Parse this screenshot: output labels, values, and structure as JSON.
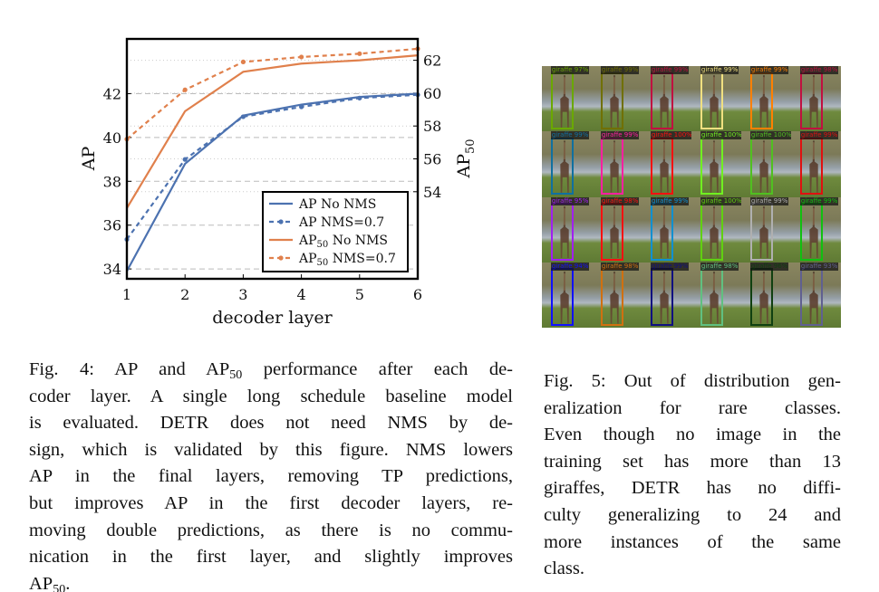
{
  "chart_data": {
    "type": "line",
    "xlabel": "decoder layer",
    "ylabel": "AP",
    "ylabel_right": "AP",
    "ylabel_right_sub": "50",
    "x": [
      1,
      2,
      3,
      4,
      5,
      6
    ],
    "xticks": [
      "1",
      "2",
      "3",
      "4",
      "5",
      "6"
    ],
    "xlim": [
      1,
      6
    ],
    "ylim": [
      33.55,
      44.5
    ],
    "yticks": [
      "34",
      "36",
      "38",
      "40",
      "42"
    ],
    "ylim_right": [
      48.7,
      63.3
    ],
    "yticks_right": [
      "54",
      "56",
      "58",
      "60",
      "62"
    ],
    "grid": true,
    "legend_placement": "bottom-right",
    "series": [
      {
        "name": "AP No NMS",
        "axis": "left",
        "style": "solid",
        "markers": false,
        "color": "#4c72b0",
        "values": [
          33.9,
          38.8,
          41.0,
          41.5,
          41.85,
          42.0
        ]
      },
      {
        "name": "AP NMS=0.7",
        "axis": "left",
        "style": "dashed",
        "markers": true,
        "color": "#4c72b0",
        "values": [
          35.35,
          39.0,
          40.95,
          41.4,
          41.8,
          41.95
        ]
      },
      {
        "name": "AP",
        "name_sub": "50",
        "name_rest": " No NMS",
        "axis": "right",
        "style": "solid",
        "markers": false,
        "color": "#e0804c",
        "values": [
          53.0,
          58.9,
          61.3,
          61.8,
          62.0,
          62.3
        ]
      },
      {
        "name": "AP",
        "name_sub": "50",
        "name_rest": " NMS=0.7",
        "axis": "right",
        "style": "dashed",
        "markers": true,
        "color": "#e0804c",
        "values": [
          57.2,
          60.2,
          61.9,
          62.2,
          62.4,
          62.7
        ]
      }
    ]
  },
  "detections": {
    "rows": [
      [
        {
          "label": "giraffe 97%",
          "color": "#6aa800"
        },
        {
          "label": "giraffe 99%",
          "color": "#707000"
        },
        {
          "label": "giraffe 99%",
          "color": "#c01040"
        },
        {
          "label": "giraffe 99%",
          "color": "#f0e080"
        },
        {
          "label": "giraffe 99%",
          "color": "#ff8000"
        },
        {
          "label": "giraffe 98%",
          "color": "#c01040"
        }
      ],
      [
        {
          "label": "giraffe 99%",
          "color": "#1070a0"
        },
        {
          "label": "giraffe 99%",
          "color": "#ff20a0"
        },
        {
          "label": "giraffe 100%",
          "color": "#ff1010"
        },
        {
          "label": "giraffe 100%",
          "color": "#70f020"
        },
        {
          "label": "giraffe 100%",
          "color": "#50c020"
        },
        {
          "label": "giraffe 99%",
          "color": "#e01010"
        }
      ],
      [
        {
          "label": "giraffe 95%",
          "color": "#a020f0"
        },
        {
          "label": "giraffe 98%",
          "color": "#ff1010"
        },
        {
          "label": "giraffe 99%",
          "color": "#1090d0"
        },
        {
          "label": "giraffe 100%",
          "color": "#60d010"
        },
        {
          "label": "giraffe 99%",
          "color": "#b0b0b0"
        },
        {
          "label": "giraffe 99%",
          "color": "#10c010"
        }
      ],
      [
        {
          "label": "giraffe 94%",
          "color": "#1010ff"
        },
        {
          "label": "giraffe 98%",
          "color": "#d07010"
        },
        {
          "label": "giraffe 99%",
          "color": "#101080"
        },
        {
          "label": "giraffe 98%",
          "color": "#60c080"
        },
        {
          "label": "giraffe 96%",
          "color": "#104010"
        },
        {
          "label": "giraffe 93%",
          "color": "#606090"
        }
      ]
    ]
  },
  "captions": {
    "fig4": [
      [
        {
          "t": "Fig. 4: AP and AP"
        },
        {
          "t": "50",
          "sub": true
        },
        {
          "t": " performance after each de-"
        }
      ],
      [
        {
          "t": "coder layer. A single long schedule baseline model"
        }
      ],
      [
        {
          "t": "is evaluated. DETR does not need NMS by de-"
        }
      ],
      [
        {
          "t": "sign, which is validated by this figure. NMS lowers"
        }
      ],
      [
        {
          "t": "AP in the final layers, removing TP predictions,"
        }
      ],
      [
        {
          "t": "but improves AP in the first decoder layers, re-"
        }
      ],
      [
        {
          "t": "moving double predictions, as there is no commu-"
        }
      ],
      [
        {
          "t": "nication in the first layer, and slightly improves"
        }
      ],
      [
        {
          "t": "AP"
        },
        {
          "t": "50",
          "sub": true
        },
        {
          "t": "."
        }
      ]
    ],
    "fig5": [
      [
        {
          "t": "Fig. 5: Out of distribution gen-"
        }
      ],
      [
        {
          "t": "eralization for rare classes."
        }
      ],
      [
        {
          "t": "Even though no image in the"
        }
      ],
      [
        {
          "t": "training set has more than 13"
        }
      ],
      [
        {
          "t": "giraffes, DETR has no diffi-"
        }
      ],
      [
        {
          "t": "culty generalizing to 24 and"
        }
      ],
      [
        {
          "t": "more instances of the same"
        }
      ],
      [
        {
          "t": "class."
        }
      ]
    ]
  }
}
